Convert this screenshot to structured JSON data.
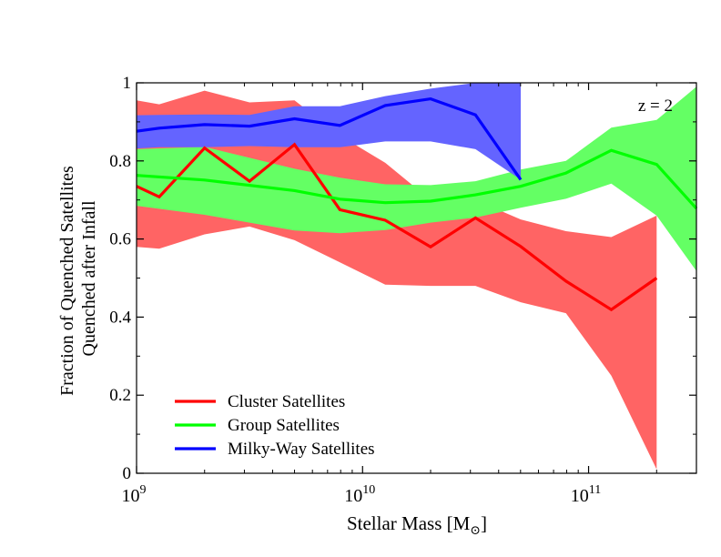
{
  "chart_data": {
    "type": "area",
    "xscale": "log",
    "xlim": [
      1000000000,
      300000000000
    ],
    "ylim": [
      0,
      1
    ],
    "xticks": [
      {
        "value": 1000000000,
        "base": "10",
        "exp": "9"
      },
      {
        "value": 10000000000,
        "base": "10",
        "exp": "10"
      },
      {
        "value": 100000000000,
        "base": "10",
        "exp": "11"
      }
    ],
    "yticks": [
      {
        "value": 0,
        "label": "0"
      },
      {
        "value": 0.2,
        "label": "0.2"
      },
      {
        "value": 0.4,
        "label": "0.4"
      },
      {
        "value": 0.6,
        "label": "0.6"
      },
      {
        "value": 0.8,
        "label": "0.8"
      },
      {
        "value": 1,
        "label": "1"
      }
    ],
    "xlabel": {
      "text": "Stellar Mass [M",
      "sub": "⊙",
      "close": "]"
    },
    "ylabel_lines": [
      "Fraction of Quenched Satellites",
      "Quenched after Infall"
    ],
    "annotation": "z = 2",
    "legend_position": "bottom-left",
    "series": [
      {
        "name": "Cluster Satellites",
        "color": "#ff0000",
        "band_color": "#ff6464",
        "x": [
          1000000000,
          1260000000,
          2000000000,
          3160000000,
          5000000000,
          7940000000,
          12600000000,
          20000000000,
          31600000000,
          50100000000,
          79400000000,
          126000000000,
          200000000000
        ],
        "y": [
          0.735,
          0.708,
          0.833,
          0.748,
          0.842,
          0.675,
          0.648,
          0.58,
          0.654,
          0.581,
          0.492,
          0.419,
          0.5
        ],
        "upper": [
          0.955,
          0.945,
          0.98,
          0.95,
          0.955,
          0.865,
          0.795,
          0.7,
          0.7,
          0.65,
          0.62,
          0.605,
          0.66
        ],
        "lower": [
          0.58,
          0.575,
          0.612,
          0.632,
          0.597,
          0.54,
          0.483,
          0.48,
          0.48,
          0.438,
          0.41,
          0.25,
          0.01
        ]
      },
      {
        "name": "Group Satellites",
        "color": "#00ff00",
        "band_color": "#64ff64",
        "x": [
          1000000000,
          2000000000,
          5000000000,
          7940000000,
          12600000000,
          20000000000,
          31600000000,
          50100000000,
          79400000000,
          126000000000,
          200000000000,
          300000000000
        ],
        "y": [
          0.763,
          0.751,
          0.724,
          0.702,
          0.693,
          0.697,
          0.713,
          0.735,
          0.769,
          0.827,
          0.791,
          0.678
        ],
        "upper": [
          0.83,
          0.836,
          0.78,
          0.757,
          0.74,
          0.738,
          0.748,
          0.778,
          0.8,
          0.885,
          0.905,
          0.99
        ],
        "lower": [
          0.685,
          0.662,
          0.622,
          0.615,
          0.623,
          0.642,
          0.655,
          0.68,
          0.703,
          0.742,
          0.66,
          0.518
        ]
      },
      {
        "name": "Milky-Way Satellites",
        "color": "#0000ff",
        "band_color": "#6464ff",
        "x": [
          1000000000,
          1260000000,
          2000000000,
          3160000000,
          5000000000,
          7940000000,
          12600000000,
          20000000000,
          31600000000,
          50100000000
        ],
        "y": [
          0.876,
          0.884,
          0.893,
          0.889,
          0.908,
          0.891,
          0.942,
          0.959,
          0.918,
          0.752
        ],
        "upper": [
          0.917,
          0.918,
          0.919,
          0.918,
          0.94,
          0.94,
          0.966,
          0.985,
          1.0,
          1.0
        ],
        "lower": [
          0.832,
          0.835,
          0.835,
          0.838,
          0.835,
          0.835,
          0.85,
          0.85,
          0.83,
          0.752
        ]
      }
    ]
  }
}
